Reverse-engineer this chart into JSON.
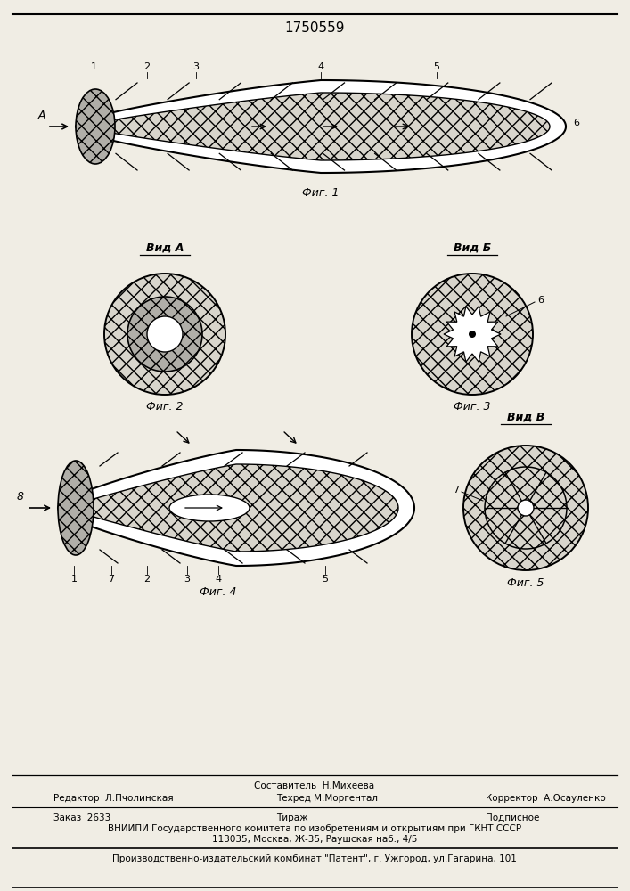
{
  "title": "1750559",
  "bg": "#f0ede4",
  "white": "#ffffff",
  "gray_hatch": "#d8d5cc",
  "dark_gray": "#b0aea8",
  "fig1_caption": "Фиг. 1",
  "fig2_caption": "Фиг. 2",
  "fig3_caption": "Фиг. 3",
  "fig4_caption": "Фиг. 4",
  "fig5_caption": "Фиг. 5",
  "vid_a": "Вид А",
  "vid_b": "Вид Б",
  "vid_v": "Вид В",
  "footer_line1": "Составитель  Н.Михеева",
  "footer_editor": "Редактор  Л.Пчолинская",
  "footer_tech": "Техред М.Моргентал",
  "footer_corrector": "Корректор  А.Осауленко",
  "footer_order": "Заказ  2633",
  "footer_tirazh": "Тираж",
  "footer_podpisnoe": "Подписное",
  "footer_vniiipi": "ВНИИПИ Государственного комитета по изобретениям и открытиям при ГКНТ СССР",
  "footer_address": "113035, Москва, Ж-35, Раушская наб., 4/5",
  "footer_production": "Производственно-издательский комбинат \"Патент\", г. Ужгород, ул.Гагарина, 101"
}
